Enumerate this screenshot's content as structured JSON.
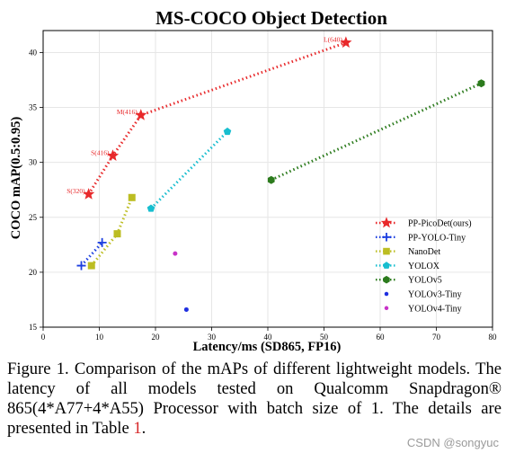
{
  "chart_data": {
    "type": "scatter",
    "title": "MS-COCO Object Detection",
    "xlabel": "Latency/ms (SD865, FP16)",
    "ylabel": "COCO mAP(0.5:0.95)",
    "xlim": [
      0,
      80
    ],
    "ylim": [
      15,
      42
    ],
    "xticks": [
      0,
      10,
      20,
      30,
      40,
      50,
      60,
      70,
      80
    ],
    "yticks": [
      15,
      20,
      25,
      30,
      35,
      40
    ],
    "grid": true,
    "legend_position": "lower-right",
    "series": [
      {
        "name": "PP-PicoDet(ours)",
        "color": "#e8292b",
        "marker": "star",
        "line": "dotted",
        "x": [
          8.1,
          12.4,
          17.4,
          53.9
        ],
        "y": [
          27.1,
          30.6,
          34.3,
          40.9
        ],
        "labels": [
          "S(320)",
          "S(416)",
          "M(416)",
          "L(640)"
        ]
      },
      {
        "name": "PP-YOLO-Tiny",
        "color": "#1c3fe0",
        "marker": "plus",
        "line": "dotted",
        "x": [
          6.8,
          10.5
        ],
        "y": [
          20.6,
          22.7
        ]
      },
      {
        "name": "NanoDet",
        "color": "#bcbd22",
        "marker": "square",
        "line": "dotted",
        "x": [
          8.6,
          13.2,
          15.8
        ],
        "y": [
          20.6,
          23.5,
          26.8
        ]
      },
      {
        "name": "YOLOX",
        "color": "#17becf",
        "marker": "pentagon",
        "line": "dotted",
        "x": [
          19.2,
          32.8
        ],
        "y": [
          25.8,
          32.8
        ]
      },
      {
        "name": "YOLOv5",
        "color": "#2c7b1d",
        "marker": "hexagon",
        "line": "dotted",
        "x": [
          40.6,
          78.0
        ],
        "y": [
          28.4,
          37.2
        ]
      },
      {
        "name": "YOLOv3-Tiny",
        "color": "#1f2fe0",
        "marker": "dot",
        "line": "none",
        "x": [
          25.5
        ],
        "y": [
          16.6
        ]
      },
      {
        "name": "YOLOv4-Tiny",
        "color": "#c832c8",
        "marker": "dot",
        "line": "none",
        "x": [
          23.5
        ],
        "y": [
          21.7
        ]
      }
    ]
  },
  "caption": {
    "text": "Figure 1. Comparison of the mAPs of different lightweight models. The latency of all models tested on Qualcomm Snapdragon® 865(4*A77+4*A55) Processor with batch size of 1. The details are presented in Table ",
    "ref": "1",
    "end": "."
  },
  "watermark": "CSDN @songyuc"
}
